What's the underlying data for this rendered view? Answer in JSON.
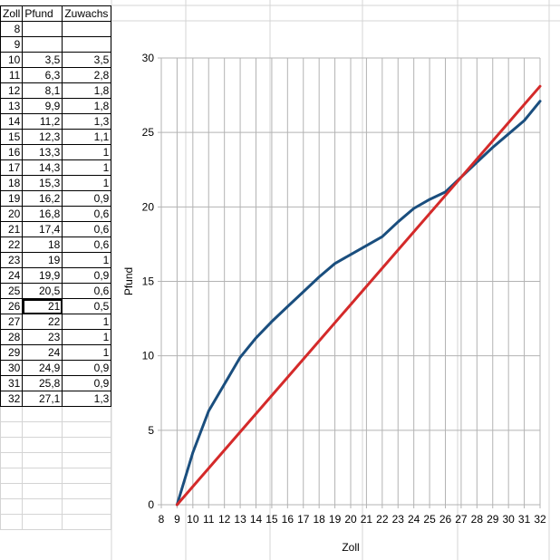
{
  "sheet": {
    "headers": [
      "Zoll",
      "Pfund",
      "Zuwachs"
    ],
    "rows": [
      [
        "8",
        "",
        ""
      ],
      [
        "9",
        "",
        ""
      ],
      [
        "10",
        "3,5",
        "3,5"
      ],
      [
        "11",
        "6,3",
        "2,8"
      ],
      [
        "12",
        "8,1",
        "1,8"
      ],
      [
        "13",
        "9,9",
        "1,8"
      ],
      [
        "14",
        "11,2",
        "1,3"
      ],
      [
        "15",
        "12,3",
        "1,1"
      ],
      [
        "16",
        "13,3",
        "1"
      ],
      [
        "17",
        "14,3",
        "1"
      ],
      [
        "18",
        "15,3",
        "1"
      ],
      [
        "19",
        "16,2",
        "0,9"
      ],
      [
        "20",
        "16,8",
        "0,6"
      ],
      [
        "21",
        "17,4",
        "0,6"
      ],
      [
        "22",
        "18",
        "0,6"
      ],
      [
        "23",
        "19",
        "1"
      ],
      [
        "24",
        "19,9",
        "0,9"
      ],
      [
        "25",
        "20,5",
        "0,6"
      ],
      [
        "26",
        "21",
        "0,5"
      ],
      [
        "27",
        "22",
        "1"
      ],
      [
        "28",
        "23",
        "1"
      ],
      [
        "29",
        "24",
        "1"
      ],
      [
        "30",
        "24,9",
        "0,9"
      ],
      [
        "31",
        "25,8",
        "0,9"
      ],
      [
        "32",
        "27,1",
        "1,3"
      ]
    ],
    "selected_cell": "Pfund 26"
  },
  "colors": {
    "series_blue": "#1a4e7e",
    "series_red": "#d42a2a",
    "gridline": "#b3b3b3",
    "sheet_gridline": "#d4d4d4"
  },
  "chart_data": {
    "type": "line",
    "xlabel": "Zoll",
    "ylabel": "Pfund",
    "xlim": [
      8,
      32
    ],
    "ylim": [
      0,
      30
    ],
    "x_ticks": [
      8,
      9,
      10,
      11,
      12,
      13,
      14,
      15,
      16,
      17,
      18,
      19,
      20,
      21,
      22,
      23,
      24,
      25,
      26,
      27,
      28,
      29,
      30,
      31,
      32
    ],
    "y_ticks": [
      0,
      5,
      10,
      15,
      20,
      25,
      30
    ],
    "grid": true,
    "series": [
      {
        "color": "#1a4e7e",
        "points": [
          [
            9,
            0
          ],
          [
            10,
            3.5
          ],
          [
            11,
            6.3
          ],
          [
            12,
            8.1
          ],
          [
            13,
            9.9
          ],
          [
            14,
            11.2
          ],
          [
            15,
            12.3
          ],
          [
            16,
            13.3
          ],
          [
            17,
            14.3
          ],
          [
            18,
            15.3
          ],
          [
            19,
            16.2
          ],
          [
            20,
            16.8
          ],
          [
            21,
            17.4
          ],
          [
            22,
            18
          ],
          [
            23,
            19
          ],
          [
            24,
            19.9
          ],
          [
            25,
            20.5
          ],
          [
            26,
            21
          ],
          [
            27,
            22
          ],
          [
            28,
            23
          ],
          [
            29,
            24
          ],
          [
            30,
            24.9
          ],
          [
            31,
            25.8
          ],
          [
            32,
            27.1
          ]
        ]
      },
      {
        "color": "#d42a2a",
        "points": [
          [
            9,
            0
          ],
          [
            32,
            28.1
          ]
        ]
      }
    ]
  }
}
